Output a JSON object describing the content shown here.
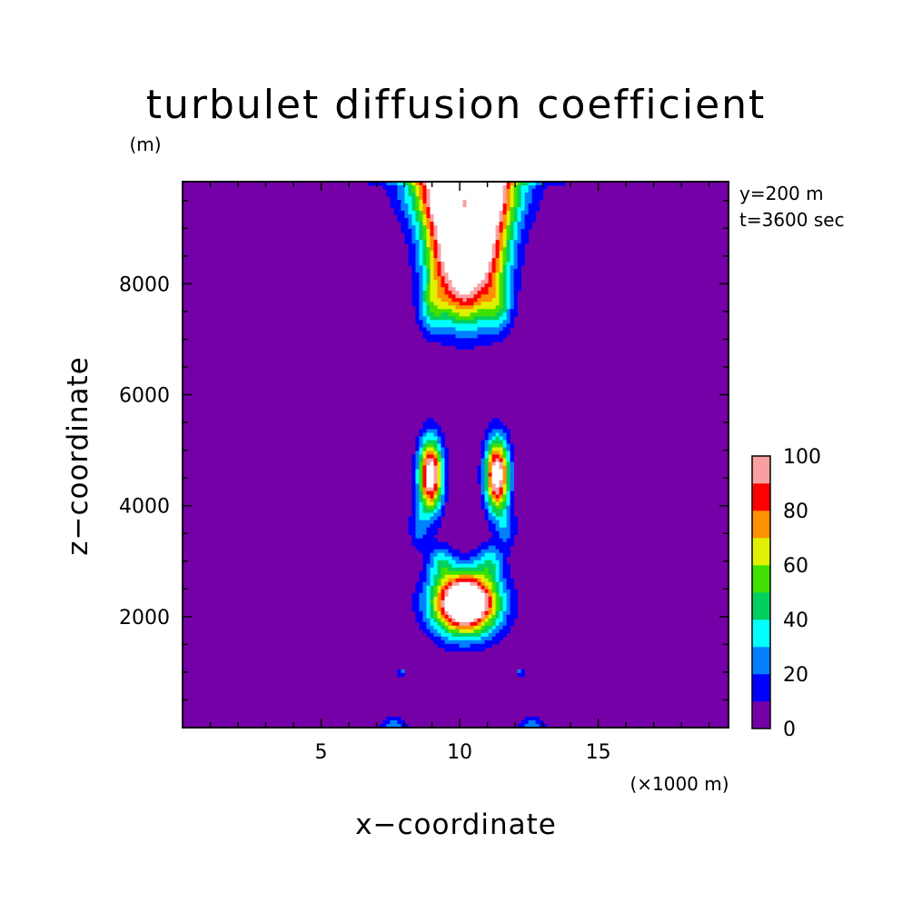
{
  "chart_data": {
    "type": "heatmap",
    "title": "turbulet diffusion coefficient",
    "xlabel": "x−coordinate",
    "ylabel": "z−coordinate",
    "x_unit": "(×1000 m)",
    "y_unit": "(m)",
    "annotations": [
      "y=200 m",
      "t=3600 sec"
    ],
    "xlim": [
      0,
      19.7
    ],
    "ylim": [
      0,
      9840
    ],
    "x_ticks": [
      5,
      10,
      15
    ],
    "y_ticks": [
      2000,
      4000,
      6000,
      8000
    ],
    "x_tick_labels": [
      "5",
      "10",
      "15"
    ],
    "y_tick_labels": [
      "2000",
      "4000",
      "6000",
      "8000"
    ],
    "x_minor_step": 1,
    "y_minor_step": 500,
    "colorbar": {
      "levels": [
        0,
        10,
        20,
        30,
        40,
        50,
        60,
        70,
        80,
        90,
        100
      ],
      "tick_labels": [
        "0",
        "20",
        "40",
        "60",
        "80",
        "100"
      ],
      "colors": [
        "#7600a8",
        "#0000ff",
        "#0080ff",
        "#00ffff",
        "#00d060",
        "#40e000",
        "#e0f000",
        "#ff9000",
        "#ff0000",
        "#f8a0a0"
      ],
      "over_color": "#ffffff"
    },
    "features": [
      {
        "name": "top plume",
        "cx": 10.2,
        "cz": 8200,
        "peak": 110
      },
      {
        "name": "left column",
        "cx": 8.9,
        "cz": 4400,
        "peak": 105
      },
      {
        "name": "right column",
        "cx": 11.3,
        "cz": 4400,
        "peak": 105
      },
      {
        "name": "lower blob",
        "cx": 10.2,
        "cz": 2300,
        "peak": 115
      },
      {
        "name": "left speck",
        "cx": 7.9,
        "cz": 1000,
        "peak": 25
      },
      {
        "name": "right speck",
        "cx": 12.2,
        "cz": 1000,
        "peak": 25
      },
      {
        "name": "bottom left patch",
        "cx": 7.5,
        "cz": 100,
        "peak": 25
      },
      {
        "name": "bottom right patch",
        "cx": 12.5,
        "cz": 100,
        "peak": 25
      }
    ]
  }
}
